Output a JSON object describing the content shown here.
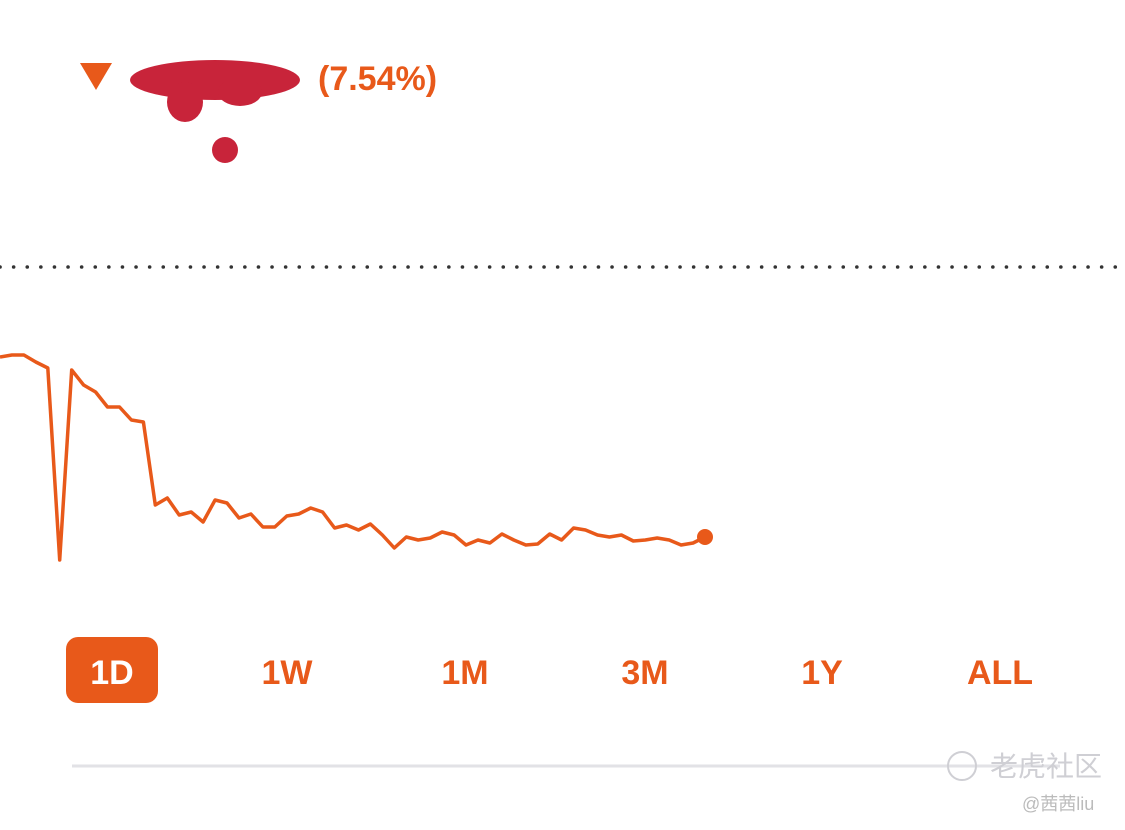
{
  "header": {
    "change": "(7.54%)"
  },
  "chart_data": {
    "type": "line",
    "color": "#e8591a",
    "values": [
      243,
      245,
      245,
      238,
      232,
      40,
      230,
      215,
      208,
      193,
      193,
      180,
      178,
      95,
      102,
      85,
      88,
      78,
      100,
      97,
      82,
      86,
      73,
      73,
      84,
      86,
      92,
      88,
      72,
      75,
      70,
      76,
      65,
      52,
      63,
      60,
      62,
      68,
      65,
      55,
      60,
      57,
      66,
      60,
      55,
      56,
      66,
      60,
      72,
      70,
      65,
      63,
      65,
      59,
      60,
      62,
      60,
      55,
      57,
      63
    ]
  },
  "ranges": [
    "1D",
    "1W",
    "1M",
    "3M",
    "1Y",
    "ALL"
  ],
  "selected_range": "1D",
  "watermark": {
    "brand": "老虎社区",
    "user": "@茜茜liu"
  }
}
